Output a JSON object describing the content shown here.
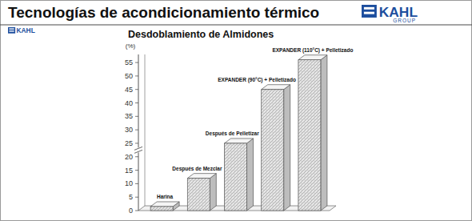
{
  "header": {
    "title": "Tecnologías de acondicionamiento térmico",
    "logo_text": "KAHL",
    "logo_subtext": "GROUP"
  },
  "chart_data": {
    "type": "bar",
    "title": "Desdoblamiento de Almidones",
    "y_label": "(%)",
    "categories": [
      "Harina",
      "Después de Mezclar",
      "Después de Pelletizar",
      "EXPANDER (90°C) + Pelletizado",
      "EXPANDER (110°C) + Pelletizado"
    ],
    "values": [
      1.5,
      12,
      25,
      45,
      56
    ],
    "color": "#e6e6e6",
    "ylim": [
      0,
      58
    ],
    "yticks": [
      0,
      5,
      10,
      15,
      20,
      25,
      30,
      35,
      40,
      45,
      50,
      55
    ],
    "grid": false
  }
}
